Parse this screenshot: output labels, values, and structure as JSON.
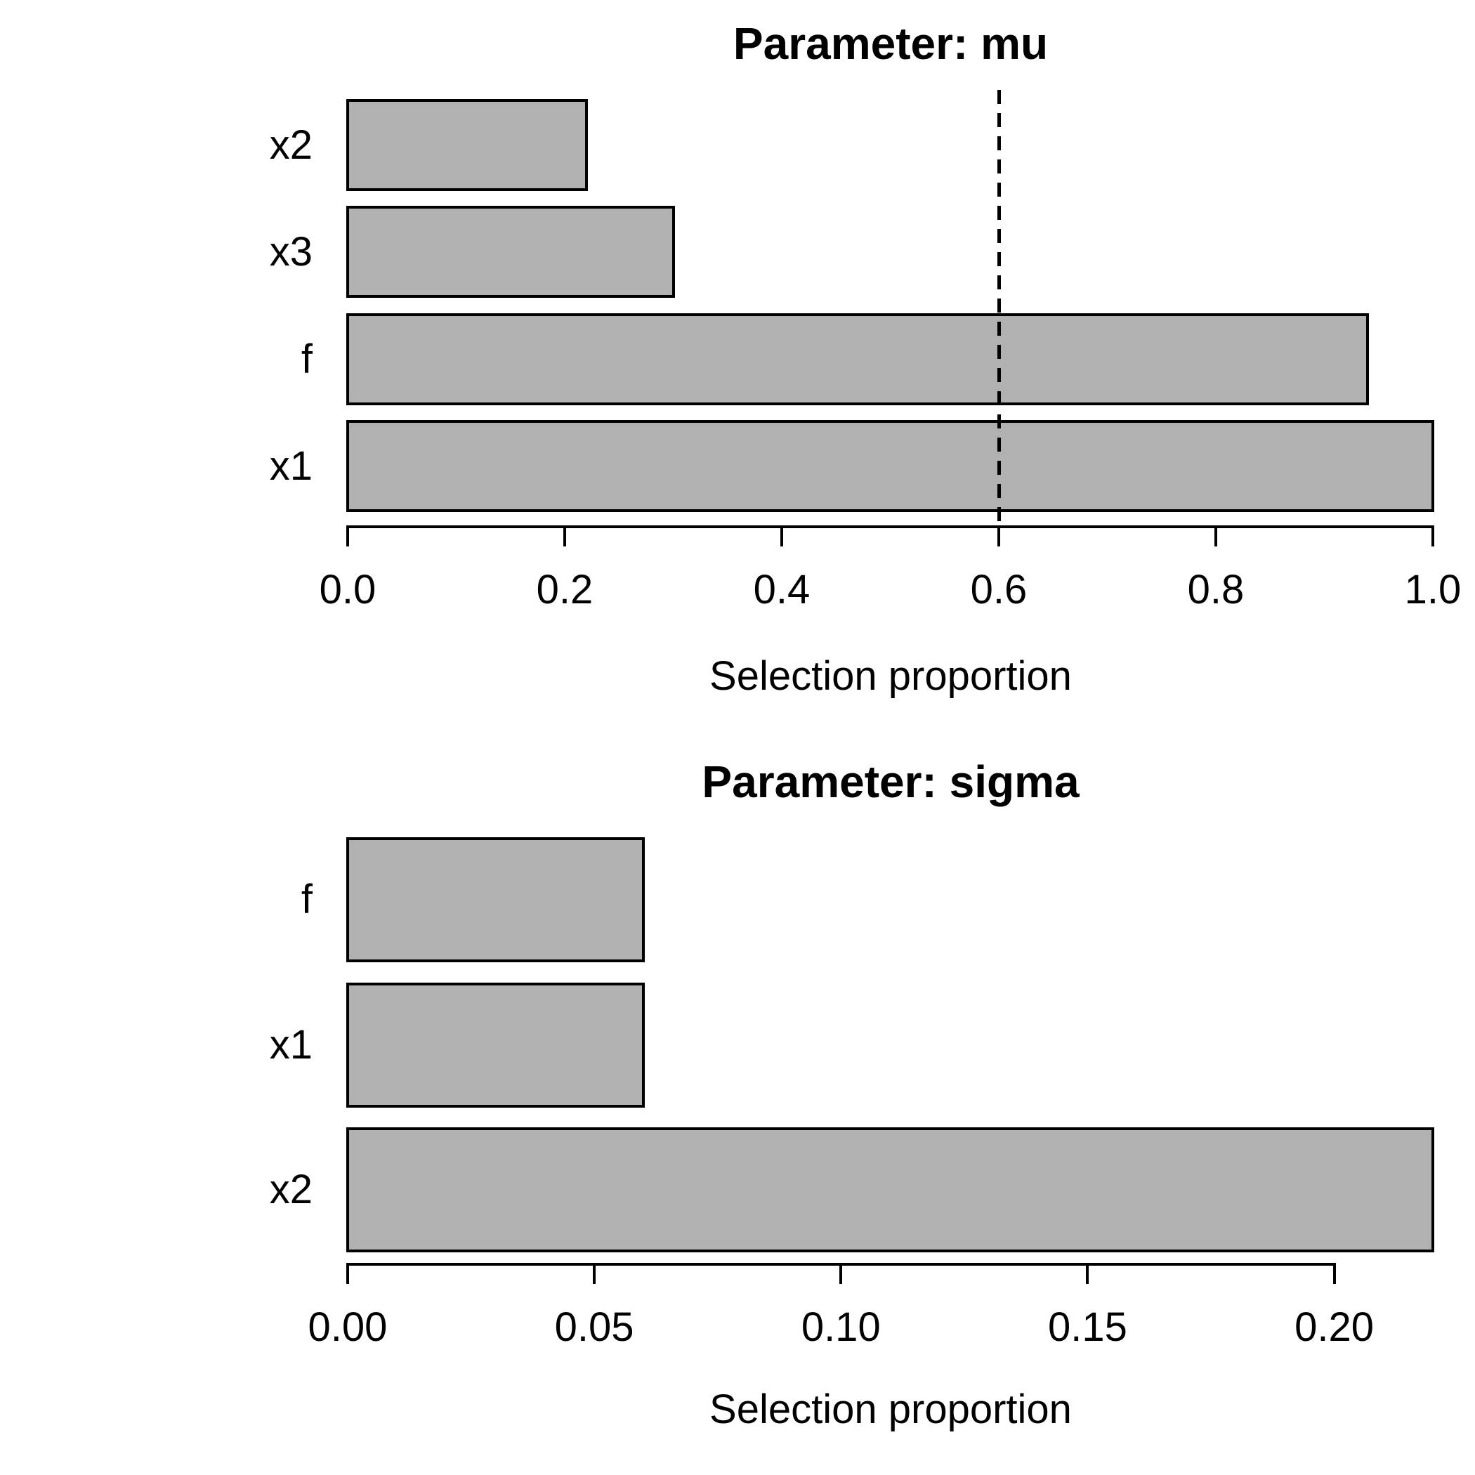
{
  "figure": {
    "background": "#ffffff",
    "bar_fill": "#b1b1b1",
    "bar_border": "#000000",
    "text_color": "#000000"
  },
  "chart_data": [
    {
      "type": "bar",
      "orientation": "horizontal",
      "title": "Parameter: mu",
      "categories": [
        "x2",
        "x3",
        "f",
        "x1"
      ],
      "values": [
        0.22,
        0.3,
        0.94,
        1.0
      ],
      "xlabel": "Selection proportion",
      "xlim": [
        0.0,
        1.0
      ],
      "xticks": [
        0.0,
        0.2,
        0.4,
        0.6,
        0.8,
        1.0
      ],
      "xtick_labels": [
        "0.0",
        "0.2",
        "0.4",
        "0.6",
        "0.8",
        "1.0"
      ],
      "reference_line": {
        "value": 0.6,
        "style": "dashed",
        "color": "#000000"
      },
      "grid": false,
      "legend": null
    },
    {
      "type": "bar",
      "orientation": "horizontal",
      "title": "Parameter: sigma",
      "categories": [
        "f",
        "x1",
        "x2"
      ],
      "values": [
        0.06,
        0.06,
        0.22
      ],
      "xlabel": "Selection proportion",
      "xlim": [
        0.0,
        0.22
      ],
      "xticks": [
        0.0,
        0.05,
        0.1,
        0.15,
        0.2
      ],
      "xtick_labels": [
        "0.00",
        "0.05",
        "0.10",
        "0.15",
        "0.20"
      ],
      "reference_line": null,
      "grid": false,
      "legend": null
    }
  ]
}
